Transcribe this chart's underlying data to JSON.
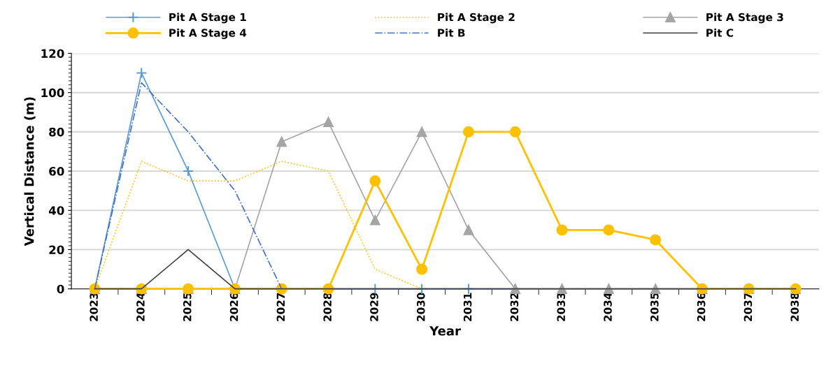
{
  "chart_data": {
    "type": "line",
    "xlabel": "Year",
    "ylabel": "Vertical Distance (m)",
    "categories": [
      "2023",
      "2024",
      "2025",
      "2026",
      "2027",
      "2028",
      "2029",
      "2030",
      "2031",
      "2032",
      "2033",
      "2034",
      "2035",
      "2036",
      "2037",
      "2038"
    ],
    "ylim": [
      0,
      120
    ],
    "yticks": [
      0,
      20,
      40,
      60,
      80,
      100,
      120
    ],
    "grid": "y",
    "legend": "top",
    "series": [
      {
        "name": "Pit A Stage 1",
        "color": "#5b9bd5",
        "marker": "cross",
        "line_style": "solid",
        "values": [
          0,
          110,
          60,
          0,
          0,
          0,
          0,
          0,
          0,
          0,
          null,
          null,
          null,
          null,
          null,
          null
        ]
      },
      {
        "name": "Pit A Stage 2",
        "color": "#ffc000",
        "marker": "none",
        "line_style": "dotted",
        "values": [
          0,
          65,
          55,
          55,
          65,
          60,
          10,
          0,
          null,
          null,
          null,
          null,
          null,
          null,
          null,
          null
        ]
      },
      {
        "name": "Pit A Stage 3",
        "color": "#a5a5a5",
        "marker": "triangle",
        "line_style": "solid",
        "values": [
          0,
          0,
          0,
          0,
          75,
          85,
          35,
          80,
          30,
          0,
          0,
          0,
          0,
          0,
          0,
          0
        ]
      },
      {
        "name": "Pit A Stage 4",
        "color": "#ffc000",
        "marker": "circle",
        "line_style": "solid",
        "values": [
          0,
          0,
          0,
          0,
          0,
          0,
          55,
          10,
          80,
          80,
          30,
          30,
          25,
          0,
          0,
          0
        ]
      },
      {
        "name": "Pit B",
        "color": "#4472c4",
        "marker": "none",
        "line_style": "dashdot",
        "values": [
          0,
          105,
          80,
          50,
          0,
          null,
          null,
          null,
          null,
          null,
          null,
          null,
          null,
          null,
          null,
          null
        ]
      },
      {
        "name": "Pit C",
        "color": "#404040",
        "marker": "none",
        "line_style": "solid",
        "values": [
          0,
          0,
          20,
          0,
          0,
          0,
          0,
          0,
          0,
          0,
          0,
          0,
          0,
          0,
          0,
          0
        ]
      }
    ]
  }
}
